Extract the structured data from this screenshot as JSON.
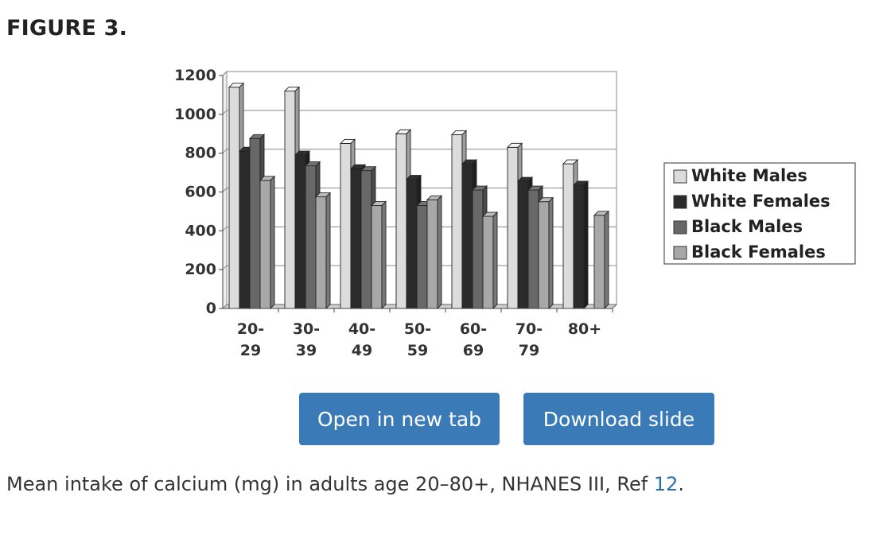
{
  "figure": {
    "title": "FIGURE 3."
  },
  "buttons": {
    "open_label": "Open in new tab",
    "download_label": "Download slide"
  },
  "caption": {
    "text": "Mean intake of calcium (mg) in adults age 20–80+, NHANES III, Ref ",
    "ref_link": "12",
    "suffix": "."
  },
  "chart_data": {
    "type": "bar",
    "style": "3d",
    "title": "",
    "xlabel": "",
    "ylabel": "",
    "ylim": [
      0,
      1200
    ],
    "yticks": [
      "0",
      "200",
      "400",
      "600",
      "800",
      "1000",
      "1200"
    ],
    "grid": true,
    "legend_position": "right",
    "categories": [
      [
        "20-",
        "29"
      ],
      [
        "30-",
        "39"
      ],
      [
        "40-",
        "49"
      ],
      [
        "50-",
        "59"
      ],
      [
        "60-",
        "69"
      ],
      [
        "70-",
        "79"
      ],
      [
        "80+",
        ""
      ]
    ],
    "series": [
      {
        "name": "White Males",
        "color": "#dcdcdc",
        "values": [
          1140,
          1120,
          850,
          900,
          895,
          830,
          745
        ]
      },
      {
        "name": "White Females",
        "color": "#2b2b2b",
        "values": [
          810,
          790,
          720,
          665,
          745,
          655,
          635
        ]
      },
      {
        "name": "Black Males",
        "color": "#686868",
        "values": [
          875,
          735,
          710,
          530,
          610,
          610,
          null
        ]
      },
      {
        "name": "Black Females",
        "color": "#a8a8a8",
        "values": [
          660,
          575,
          530,
          560,
          475,
          550,
          480
        ]
      }
    ]
  }
}
